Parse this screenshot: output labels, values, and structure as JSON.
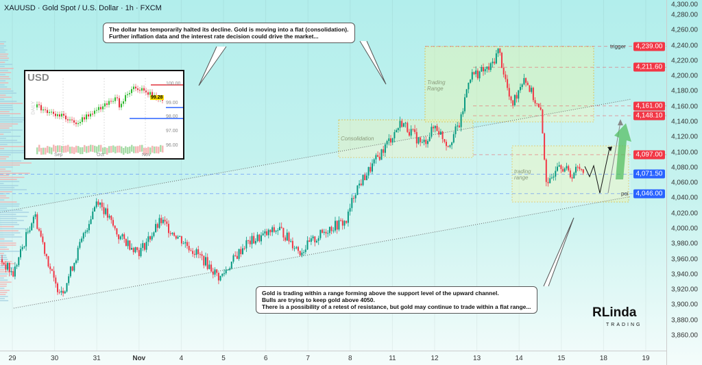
{
  "header": {
    "title": "XAUUSD · Gold Spot / U.S. Dollar · 1h · FXCM"
  },
  "callouts": {
    "top": [
      "The dollar has temporarily halted its decline. Gold is moving into a flat (consolidation).",
      "Further inflation data and the interest rate decision could drive the market..."
    ],
    "bottom": [
      "Gold is trading within a range forming above the support level of the upward channel.",
      "Bulls are trying to keep gold above 4050.",
      "There is a possibility of a retest of resistance, but gold may continue to trade within a flat range..."
    ]
  },
  "boxes": {
    "consolidation": "Consolidation",
    "trading_range": "Trading Range",
    "trading_range_small": "trading range"
  },
  "levels": [
    {
      "price": 4239.0,
      "label": "4,239.00",
      "name": "trigger",
      "color": "#f23645"
    },
    {
      "price": 4211.6,
      "label": "4,211.60",
      "name": "",
      "color": "#f23645"
    },
    {
      "price": 4161.0,
      "label": "4,161.00",
      "name": "",
      "color": "#f23645"
    },
    {
      "price": 4148.1,
      "label": "4,148.10",
      "name": "",
      "color": "#f23645"
    },
    {
      "price": 4097.0,
      "label": "4,097.00",
      "name": "",
      "color": "#f23645"
    },
    {
      "price": 4071.5,
      "label": "4,071.50",
      "name": "",
      "color": "#2962ff"
    },
    {
      "price": 4046.0,
      "label": "4,046.00",
      "name": "poi",
      "color": "#2962ff"
    }
  ],
  "logo": {
    "main": "RLinda",
    "sub": "TRADING"
  },
  "inset": {
    "title": "USD",
    "side": "DAILY",
    "price": "99.28",
    "yticks": [
      "100.00",
      "99.00",
      "98.00",
      "97.00",
      "96.00"
    ],
    "xticks": [
      "Sep",
      "Oct",
      "Nov"
    ]
  },
  "chart_data": {
    "type": "candlestick",
    "title": "XAUUSD · Gold Spot / U.S. Dollar · 1h · FXCM",
    "ylim": [
      3850,
      4300
    ],
    "yticks": [
      4300,
      4280,
      4260,
      4240,
      4220,
      4200,
      4180,
      4160,
      4140,
      4120,
      4100,
      4080,
      4060,
      4040,
      4020,
      4000,
      3980,
      3960,
      3940,
      3920,
      3900,
      3880,
      3860
    ],
    "xticks": [
      "29",
      "30",
      "31",
      "Nov",
      "4",
      "5",
      "6",
      "7",
      "8",
      "11",
      "12",
      "13",
      "14",
      "15",
      "18",
      "19"
    ],
    "path_day_price": [
      [
        -0.3,
        3960
      ],
      [
        0,
        3940
      ],
      [
        0.5,
        4020
      ],
      [
        1,
        3925
      ],
      [
        1.2,
        3920
      ],
      [
        2,
        4040
      ],
      [
        2.5,
        3990
      ],
      [
        3,
        3970
      ],
      [
        3.5,
        4010
      ],
      [
        4.5,
        3960
      ],
      [
        4.9,
        3935
      ],
      [
        5.5,
        3980
      ],
      [
        6.3,
        4000
      ],
      [
        6.8,
        3970
      ],
      [
        7.45,
        4000
      ],
      [
        7.9,
        4010
      ],
      [
        8.1,
        4050
      ],
      [
        8.6,
        4090
      ],
      [
        9.2,
        4140
      ],
      [
        9.7,
        4110
      ],
      [
        10,
        4135
      ],
      [
        10.3,
        4110
      ],
      [
        10.6,
        4140
      ],
      [
        10.8,
        4200
      ],
      [
        11.3,
        4210
      ],
      [
        11.5,
        4235
      ],
      [
        11.8,
        4160
      ],
      [
        12.1,
        4200
      ],
      [
        12.5,
        4150
      ],
      [
        12.65,
        4050
      ],
      [
        12.9,
        4090
      ],
      [
        13.2,
        4070
      ],
      [
        13.4,
        4080
      ]
    ]
  }
}
